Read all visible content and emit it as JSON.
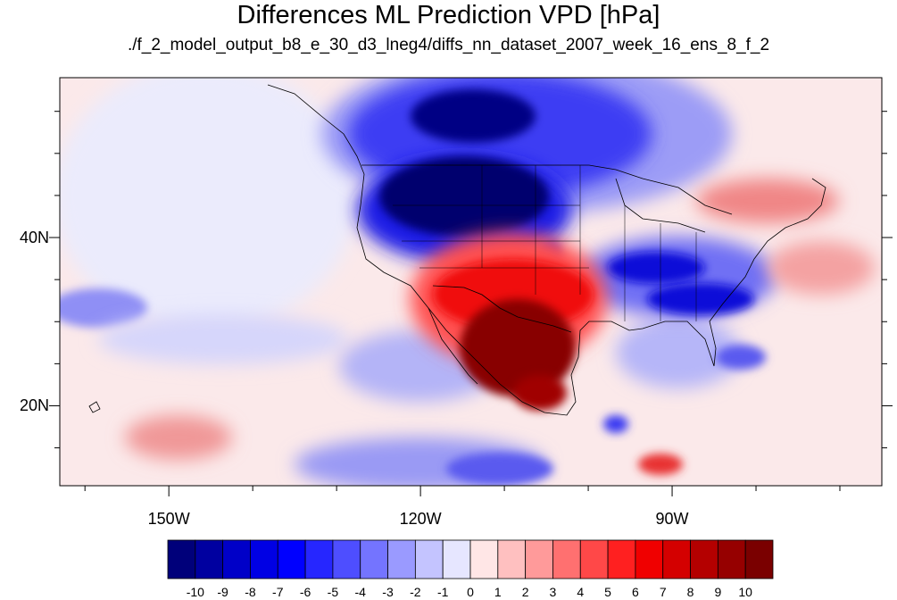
{
  "title": "Differences ML Prediction VPD [hPa]",
  "subtitle": "./f_2_model_output_b8_e_30_d3_lneg4/diffs_nn_dataset_2007_week_16_ens_8_f_2",
  "map": {
    "lon_range": [
      -163,
      -65
    ],
    "lat_range": [
      10.5,
      59
    ],
    "lat_ticks": [
      {
        "value": 40,
        "label": "40N"
      },
      {
        "value": 20,
        "label": "20N"
      }
    ],
    "lon_ticks": [
      {
        "value": -150,
        "label": "150W"
      },
      {
        "value": -120,
        "label": "120W"
      },
      {
        "value": -90,
        "label": "90W"
      }
    ]
  },
  "colorbar": {
    "labels": [
      "-10",
      "-9",
      "-8",
      "-7",
      "-6",
      "-5",
      "-4",
      "-3",
      "-2",
      "-1",
      "0",
      "1",
      "2",
      "3",
      "4",
      "5",
      "6",
      "7",
      "8",
      "9",
      "10"
    ],
    "colors": [
      "#00007a",
      "#0000a0",
      "#0000c8",
      "#0000e4",
      "#0000ff",
      "#2626ff",
      "#4e4eff",
      "#7474ff",
      "#9a9aff",
      "#c4c4ff",
      "#e6e6ff",
      "#ffe6e6",
      "#ffc0c0",
      "#ff9a9a",
      "#ff7070",
      "#ff4848",
      "#ff2020",
      "#f00000",
      "#d40000",
      "#b40000",
      "#960000",
      "#7a0000"
    ]
  }
}
